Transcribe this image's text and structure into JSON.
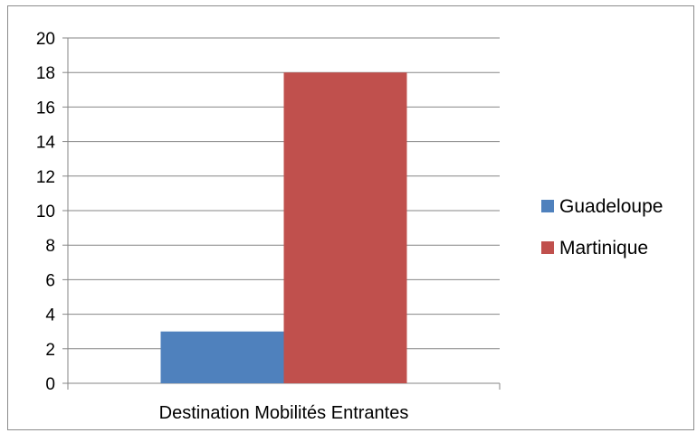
{
  "chart_data": {
    "type": "bar",
    "categories": [
      "Destination Mobilités Entrantes"
    ],
    "series": [
      {
        "name": "Guadeloupe",
        "values": [
          3
        ],
        "color": "#4f81bd"
      },
      {
        "name": "Martinique",
        "values": [
          18
        ],
        "color": "#c0504d"
      }
    ],
    "title": "",
    "xlabel": "",
    "ylabel": "",
    "ylim": [
      0,
      20
    ],
    "yticks": [
      0,
      2,
      4,
      6,
      8,
      10,
      12,
      14,
      16,
      18,
      20
    ],
    "grid": true,
    "legend": "right",
    "gridline_color": "#868686",
    "axis_color": "#868686"
  }
}
